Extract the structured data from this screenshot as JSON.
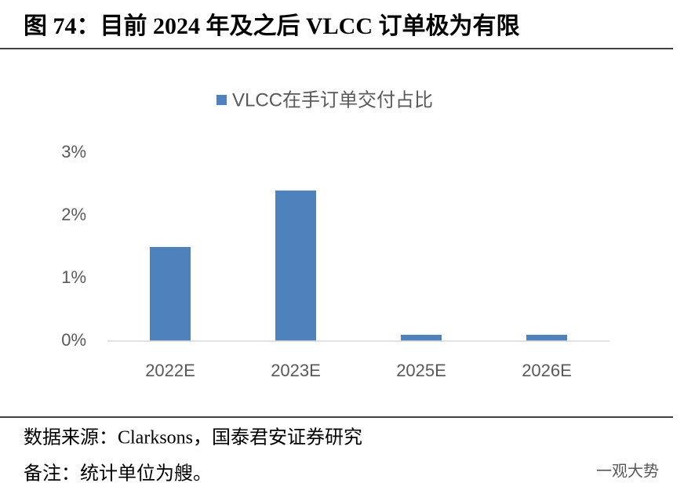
{
  "header": {
    "title": "图 74：目前 2024 年及之后 VLCC 订单极为有限"
  },
  "chart_data": {
    "type": "bar",
    "categories": [
      "2022E",
      "2023E",
      "2025E",
      "2026E"
    ],
    "series": [
      {
        "name": "VLCC在手订单交付占比",
        "color": "#4f81bd",
        "values": [
          1.5,
          2.4,
          0.1,
          0.1
        ]
      }
    ],
    "ylim": [
      0,
      3
    ],
    "yticks": [
      {
        "value": 0,
        "label": "0%"
      },
      {
        "value": 1,
        "label": "1%"
      },
      {
        "value": 2,
        "label": "2%"
      },
      {
        "value": 3,
        "label": "3%"
      }
    ],
    "grid": false,
    "legend": "top"
  },
  "footer": {
    "source": "数据来源：Clarksons，国泰君安证券研究",
    "note": "备注：统计单位为艘。",
    "watermark": "一观大势"
  }
}
